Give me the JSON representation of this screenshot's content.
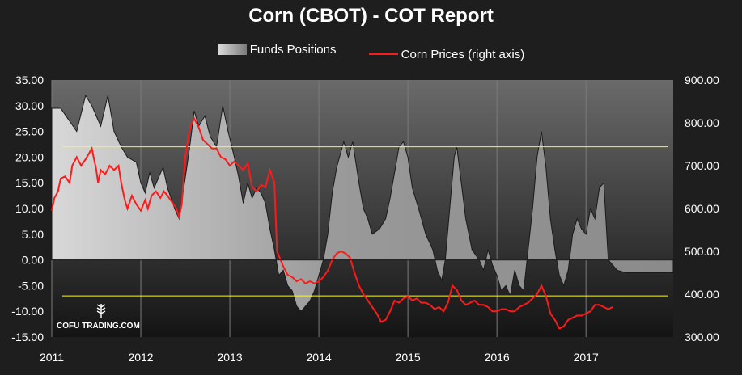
{
  "chart_data": {
    "type": "area",
    "title": "Corn (CBOT) - COT Report",
    "legend": {
      "placement": "top-center"
    },
    "x_labels": [
      "2011",
      "2012",
      "2013",
      "2014",
      "2015",
      "2016",
      "2017"
    ],
    "y_left": {
      "ticks": [
        "35.00",
        "30.00",
        "25.00",
        "20.00",
        "15.00",
        "10.00",
        "5.00",
        "0.00",
        "-5.00",
        "-10.00",
        "-15.00"
      ],
      "range": [
        -15,
        35
      ]
    },
    "y_right": {
      "ticks": [
        "900.00",
        "800.00",
        "700.00",
        "600.00",
        "500.00",
        "400.00",
        "300.00"
      ],
      "range": [
        300,
        900
      ]
    },
    "reference_lines": [
      {
        "axis": "left",
        "value": 22.0,
        "color": "#ffff00"
      },
      {
        "axis": "left",
        "value": -7.0,
        "color": "#ffff00"
      }
    ],
    "series": [
      {
        "name": "Funds Positions",
        "axis": "left",
        "color_gradient": [
          "#dcdcdc",
          "#6a6a6a"
        ],
        "points": [
          [
            2011.0,
            29.5
          ],
          [
            2011.1,
            29.5
          ],
          [
            2011.2,
            27
          ],
          [
            2011.28,
            25
          ],
          [
            2011.38,
            32
          ],
          [
            2011.45,
            30
          ],
          [
            2011.5,
            28
          ],
          [
            2011.55,
            26
          ],
          [
            2011.63,
            32
          ],
          [
            2011.7,
            25
          ],
          [
            2011.78,
            22
          ],
          [
            2011.85,
            20
          ],
          [
            2011.95,
            19
          ],
          [
            2012.0,
            15
          ],
          [
            2012.05,
            13
          ],
          [
            2012.1,
            17
          ],
          [
            2012.15,
            14
          ],
          [
            2012.2,
            16
          ],
          [
            2012.25,
            18
          ],
          [
            2012.3,
            14
          ],
          [
            2012.38,
            10
          ],
          [
            2012.43,
            8
          ],
          [
            2012.5,
            16
          ],
          [
            2012.55,
            22
          ],
          [
            2012.6,
            29
          ],
          [
            2012.65,
            26
          ],
          [
            2012.72,
            28
          ],
          [
            2012.78,
            24
          ],
          [
            2012.85,
            22
          ],
          [
            2012.92,
            30
          ],
          [
            2012.98,
            25
          ],
          [
            2013.05,
            20
          ],
          [
            2013.1,
            16
          ],
          [
            2013.15,
            11
          ],
          [
            2013.2,
            15
          ],
          [
            2013.25,
            12
          ],
          [
            2013.3,
            14
          ],
          [
            2013.35,
            13
          ],
          [
            2013.4,
            11
          ],
          [
            2013.45,
            6
          ],
          [
            2013.5,
            2
          ],
          [
            2013.55,
            -3
          ],
          [
            2013.6,
            -2
          ],
          [
            2013.65,
            -5
          ],
          [
            2013.7,
            -6
          ],
          [
            2013.75,
            -9
          ],
          [
            2013.8,
            -10
          ],
          [
            2013.85,
            -9
          ],
          [
            2013.9,
            -8
          ],
          [
            2013.95,
            -6
          ],
          [
            2014.0,
            -3
          ],
          [
            2014.05,
            0
          ],
          [
            2014.1,
            5
          ],
          [
            2014.15,
            13
          ],
          [
            2014.2,
            18
          ],
          [
            2014.28,
            23
          ],
          [
            2014.33,
            20
          ],
          [
            2014.38,
            23
          ],
          [
            2014.45,
            15
          ],
          [
            2014.5,
            10
          ],
          [
            2014.55,
            8
          ],
          [
            2014.6,
            5
          ],
          [
            2014.68,
            6
          ],
          [
            2014.75,
            8
          ],
          [
            2014.8,
            12
          ],
          [
            2014.85,
            17
          ],
          [
            2014.9,
            22
          ],
          [
            2014.95,
            23
          ],
          [
            2015.0,
            20
          ],
          [
            2015.05,
            14
          ],
          [
            2015.12,
            10
          ],
          [
            2015.2,
            5
          ],
          [
            2015.28,
            2
          ],
          [
            2015.33,
            -2
          ],
          [
            2015.38,
            -4
          ],
          [
            2015.42,
            0
          ],
          [
            2015.47,
            10
          ],
          [
            2015.52,
            20
          ],
          [
            2015.55,
            22
          ],
          [
            2015.6,
            15
          ],
          [
            2015.65,
            8
          ],
          [
            2015.72,
            2
          ],
          [
            2015.8,
            0
          ],
          [
            2015.85,
            -2
          ],
          [
            2015.9,
            2
          ],
          [
            2015.95,
            -1
          ],
          [
            2016.0,
            -3
          ],
          [
            2016.05,
            -6
          ],
          [
            2016.1,
            -5
          ],
          [
            2016.15,
            -7
          ],
          [
            2016.2,
            -2
          ],
          [
            2016.25,
            -5
          ],
          [
            2016.3,
            -6
          ],
          [
            2016.35,
            2
          ],
          [
            2016.4,
            10
          ],
          [
            2016.45,
            20
          ],
          [
            2016.5,
            25
          ],
          [
            2016.55,
            18
          ],
          [
            2016.6,
            8
          ],
          [
            2016.65,
            2
          ],
          [
            2016.7,
            -3
          ],
          [
            2016.75,
            -5
          ],
          [
            2016.8,
            -2
          ],
          [
            2016.85,
            5
          ],
          [
            2016.9,
            8
          ],
          [
            2016.95,
            6
          ],
          [
            2017.0,
            5
          ],
          [
            2017.05,
            10
          ],
          [
            2017.1,
            8
          ],
          [
            2017.15,
            14
          ],
          [
            2017.2,
            15
          ],
          [
            2017.25,
            0
          ],
          [
            2017.3,
            -1
          ],
          [
            2017.35,
            -2
          ],
          [
            2017.45,
            -2.5
          ],
          [
            2017.7,
            -2.5
          ],
          [
            2017.98,
            -2.5
          ]
        ]
      },
      {
        "name": "Corn Prices  (right axis)",
        "axis": "right",
        "color": "#ff1a1a",
        "points": [
          [
            2011.0,
            595
          ],
          [
            2011.03,
            625
          ],
          [
            2011.07,
            640
          ],
          [
            2011.1,
            670
          ],
          [
            2011.15,
            675
          ],
          [
            2011.2,
            660
          ],
          [
            2011.23,
            700
          ],
          [
            2011.28,
            720
          ],
          [
            2011.33,
            700
          ],
          [
            2011.38,
            715
          ],
          [
            2011.45,
            740
          ],
          [
            2011.5,
            690
          ],
          [
            2011.52,
            660
          ],
          [
            2011.55,
            690
          ],
          [
            2011.6,
            680
          ],
          [
            2011.65,
            700
          ],
          [
            2011.7,
            690
          ],
          [
            2011.75,
            700
          ],
          [
            2011.78,
            660
          ],
          [
            2011.82,
            620
          ],
          [
            2011.85,
            600
          ],
          [
            2011.9,
            630
          ],
          [
            2011.95,
            610
          ],
          [
            2012.0,
            595
          ],
          [
            2012.05,
            620
          ],
          [
            2012.08,
            600
          ],
          [
            2012.12,
            630
          ],
          [
            2012.17,
            640
          ],
          [
            2012.22,
            625
          ],
          [
            2012.26,
            640
          ],
          [
            2012.3,
            630
          ],
          [
            2012.35,
            615
          ],
          [
            2012.4,
            600
          ],
          [
            2012.43,
            580
          ],
          [
            2012.46,
            610
          ],
          [
            2012.5,
            720
          ],
          [
            2012.55,
            790
          ],
          [
            2012.6,
            810
          ],
          [
            2012.65,
            790
          ],
          [
            2012.7,
            760
          ],
          [
            2012.75,
            750
          ],
          [
            2012.8,
            740
          ],
          [
            2012.85,
            740
          ],
          [
            2012.9,
            720
          ],
          [
            2012.95,
            715
          ],
          [
            2013.0,
            700
          ],
          [
            2013.05,
            710
          ],
          [
            2013.1,
            700
          ],
          [
            2013.15,
            690
          ],
          [
            2013.2,
            705
          ],
          [
            2013.25,
            650
          ],
          [
            2013.3,
            640
          ],
          [
            2013.35,
            655
          ],
          [
            2013.4,
            650
          ],
          [
            2013.45,
            690
          ],
          [
            2013.5,
            660
          ],
          [
            2013.53,
            500
          ],
          [
            2013.57,
            480
          ],
          [
            2013.6,
            465
          ],
          [
            2013.65,
            445
          ],
          [
            2013.7,
            440
          ],
          [
            2013.75,
            430
          ],
          [
            2013.8,
            435
          ],
          [
            2013.85,
            425
          ],
          [
            2013.9,
            430
          ],
          [
            2013.95,
            425
          ],
          [
            2014.0,
            430
          ],
          [
            2014.05,
            440
          ],
          [
            2014.1,
            455
          ],
          [
            2014.15,
            480
          ],
          [
            2014.2,
            495
          ],
          [
            2014.25,
            500
          ],
          [
            2014.3,
            495
          ],
          [
            2014.35,
            485
          ],
          [
            2014.4,
            450
          ],
          [
            2014.45,
            420
          ],
          [
            2014.5,
            400
          ],
          [
            2014.55,
            385
          ],
          [
            2014.6,
            370
          ],
          [
            2014.65,
            355
          ],
          [
            2014.7,
            335
          ],
          [
            2014.75,
            340
          ],
          [
            2014.8,
            360
          ],
          [
            2014.85,
            385
          ],
          [
            2014.9,
            380
          ],
          [
            2014.95,
            390
          ],
          [
            2015.0,
            395
          ],
          [
            2015.05,
            385
          ],
          [
            2015.1,
            390
          ],
          [
            2015.15,
            380
          ],
          [
            2015.2,
            380
          ],
          [
            2015.25,
            375
          ],
          [
            2015.3,
            365
          ],
          [
            2015.35,
            370
          ],
          [
            2015.4,
            360
          ],
          [
            2015.45,
            380
          ],
          [
            2015.5,
            420
          ],
          [
            2015.55,
            410
          ],
          [
            2015.6,
            385
          ],
          [
            2015.65,
            375
          ],
          [
            2015.7,
            380
          ],
          [
            2015.75,
            385
          ],
          [
            2015.8,
            375
          ],
          [
            2015.85,
            375
          ],
          [
            2015.9,
            370
          ],
          [
            2015.95,
            360
          ],
          [
            2016.0,
            360
          ],
          [
            2016.05,
            365
          ],
          [
            2016.1,
            365
          ],
          [
            2016.15,
            360
          ],
          [
            2016.2,
            360
          ],
          [
            2016.25,
            370
          ],
          [
            2016.3,
            375
          ],
          [
            2016.35,
            380
          ],
          [
            2016.4,
            390
          ],
          [
            2016.45,
            400
          ],
          [
            2016.5,
            420
          ],
          [
            2016.55,
            395
          ],
          [
            2016.6,
            355
          ],
          [
            2016.65,
            340
          ],
          [
            2016.7,
            320
          ],
          [
            2016.75,
            325
          ],
          [
            2016.8,
            340
          ],
          [
            2016.85,
            345
          ],
          [
            2016.9,
            350
          ],
          [
            2016.95,
            350
          ],
          [
            2017.0,
            355
          ],
          [
            2017.05,
            360
          ],
          [
            2017.1,
            375
          ],
          [
            2017.15,
            375
          ],
          [
            2017.2,
            370
          ],
          [
            2017.25,
            365
          ],
          [
            2017.3,
            370
          ]
        ]
      }
    ]
  },
  "legend_labels": {
    "funds": "Funds Positions",
    "prices": "Corn Prices  (right axis)"
  },
  "watermark": "COFU TRADING.COM"
}
